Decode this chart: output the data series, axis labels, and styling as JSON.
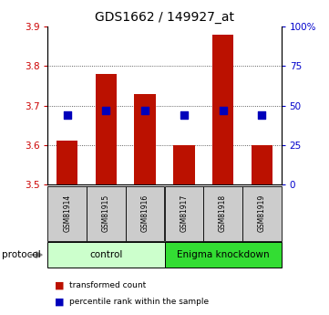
{
  "title": "GDS1662 / 149927_at",
  "samples": [
    "GSM81914",
    "GSM81915",
    "GSM81916",
    "GSM81917",
    "GSM81918",
    "GSM81919"
  ],
  "bar_low": [
    3.5,
    3.5,
    3.5,
    3.5,
    3.5,
    3.5
  ],
  "bar_high": [
    3.61,
    3.78,
    3.73,
    3.6,
    3.88,
    3.6
  ],
  "percentile_rank": [
    44,
    47,
    47,
    44,
    47,
    44
  ],
  "ylim": [
    3.5,
    3.9
  ],
  "yticks": [
    3.5,
    3.6,
    3.7,
    3.8,
    3.9
  ],
  "right_yticks": [
    0,
    25,
    50,
    75,
    100
  ],
  "bar_color": "#BB1100",
  "marker_color": "#0000BB",
  "plot_bg": "#FFFFFF",
  "grid_color": "#333333",
  "groups": [
    {
      "label": "control",
      "start": 0,
      "end": 3,
      "color": "#CCFFCC"
    },
    {
      "label": "Enigma knockdown",
      "start": 3,
      "end": 6,
      "color": "#33DD33"
    }
  ],
  "protocol_label": "protocol",
  "legend_items": [
    {
      "label": "transformed count",
      "color": "#BB1100"
    },
    {
      "label": "percentile rank within the sample",
      "color": "#0000BB"
    }
  ],
  "left_axis_color": "#CC0000",
  "right_axis_color": "#0000CC",
  "bar_width": 0.55,
  "marker_size": 30,
  "title_fontsize": 10,
  "tick_fontsize": 7.5,
  "sample_fontsize": 5.5,
  "group_fontsize": 7.5,
  "legend_fontsize": 6.5,
  "protocol_fontsize": 7.5
}
